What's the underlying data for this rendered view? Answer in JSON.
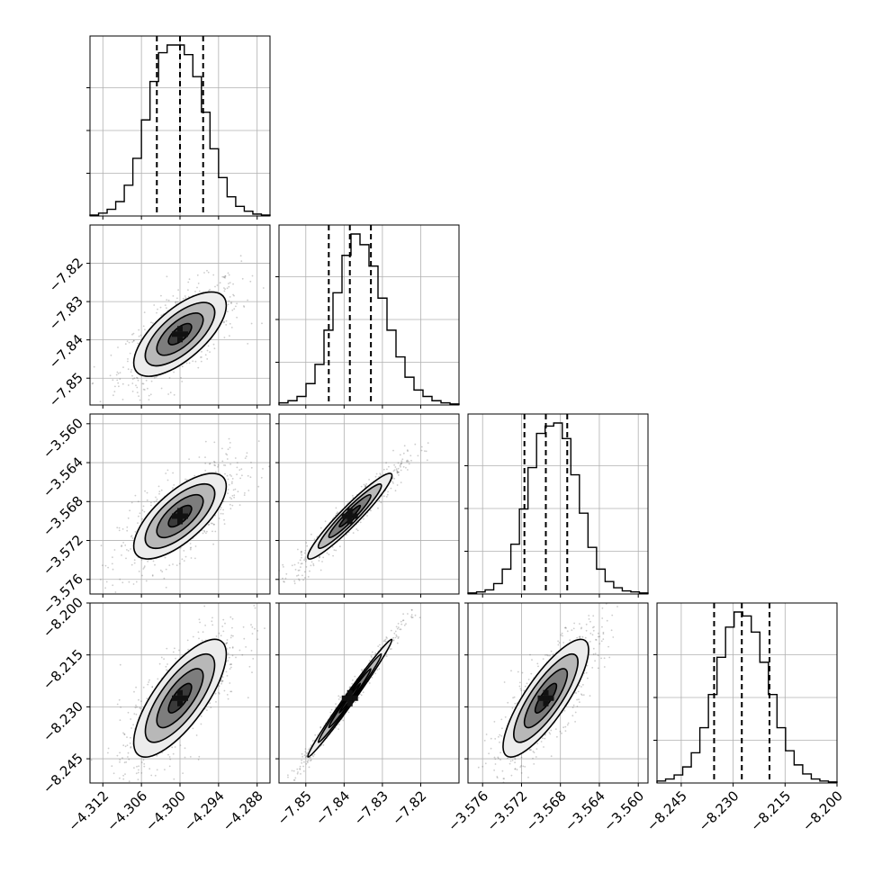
{
  "chart_data": {
    "type": "corner",
    "parameters": 4,
    "quantiles": [
      0.16,
      0.5,
      0.84
    ],
    "grid": true,
    "colors": {
      "line": "#000000",
      "grid": "#b0b0b0",
      "samples": "#555555"
    },
    "axes": [
      {
        "range": [
          -4.314,
          -4.286
        ],
        "ticks": [
          -4.312,
          -4.306,
          -4.3,
          -4.294,
          -4.288
        ],
        "tick_labels": [
          "−4.312",
          "−4.306",
          "−4.300",
          "−4.294",
          "−4.288"
        ],
        "mean": -4.3,
        "sd": 0.0036,
        "quantile_values": [
          -4.3036,
          -4.3,
          -4.2964
        ]
      },
      {
        "range": [
          -7.857,
          -7.81
        ],
        "ticks": [
          -7.85,
          -7.84,
          -7.83,
          -7.82
        ],
        "tick_labels": [
          "−7.85",
          "−7.84",
          "−7.83",
          "−7.82"
        ],
        "mean": -7.8385,
        "sd": 0.0055,
        "quantile_values": [
          -7.844,
          -7.8385,
          -7.833
        ]
      },
      {
        "range": [
          -3.5775,
          -3.559
        ],
        "ticks": [
          -3.576,
          -3.572,
          -3.568,
          -3.564,
          -3.56
        ],
        "tick_labels": [
          "−3.576",
          "−3.572",
          "−3.568",
          "−3.564",
          "−3.560"
        ],
        "mean": -3.5695,
        "sd": 0.0022,
        "quantile_values": [
          -3.5717,
          -3.5695,
          -3.5673
        ]
      },
      {
        "range": [
          -8.252,
          -8.2
        ],
        "ticks": [
          -8.245,
          -8.23,
          -8.215,
          -8.2
        ],
        "tick_labels": [
          "−8.245",
          "−8.230",
          "−8.215",
          "−8.200"
        ],
        "mean": -8.2275,
        "sd": 0.0085,
        "quantile_values": [
          -8.2355,
          -8.2275,
          -8.2195
        ]
      }
    ],
    "correlations": [
      [
        1,
        0.68,
        0.7,
        0.75
      ],
      [
        0.68,
        1,
        0.95,
        0.99
      ],
      [
        0.7,
        0.95,
        1,
        0.82
      ],
      [
        0.75,
        0.99,
        0.82,
        1
      ]
    ],
    "histograms": [
      {
        "counts": [
          1,
          3,
          7,
          15,
          32,
          60,
          100,
          140,
          170,
          178,
          178,
          168,
          145,
          108,
          70,
          40,
          20,
          10,
          5,
          2,
          1
        ]
      },
      {
        "counts": [
          2,
          4,
          8,
          20,
          38,
          70,
          105,
          140,
          160,
          150,
          130,
          100,
          70,
          45,
          26,
          14,
          8,
          4,
          2,
          1
        ]
      },
      {
        "counts": [
          1,
          2,
          4,
          10,
          24,
          48,
          82,
          122,
          155,
          162,
          165,
          150,
          115,
          78,
          45,
          24,
          12,
          6,
          3,
          2,
          1
        ]
      },
      {
        "counts": [
          2,
          4,
          8,
          16,
          30,
          55,
          88,
          125,
          155,
          170,
          166,
          150,
          120,
          88,
          55,
          32,
          18,
          9,
          4,
          2,
          1
        ]
      }
    ]
  }
}
